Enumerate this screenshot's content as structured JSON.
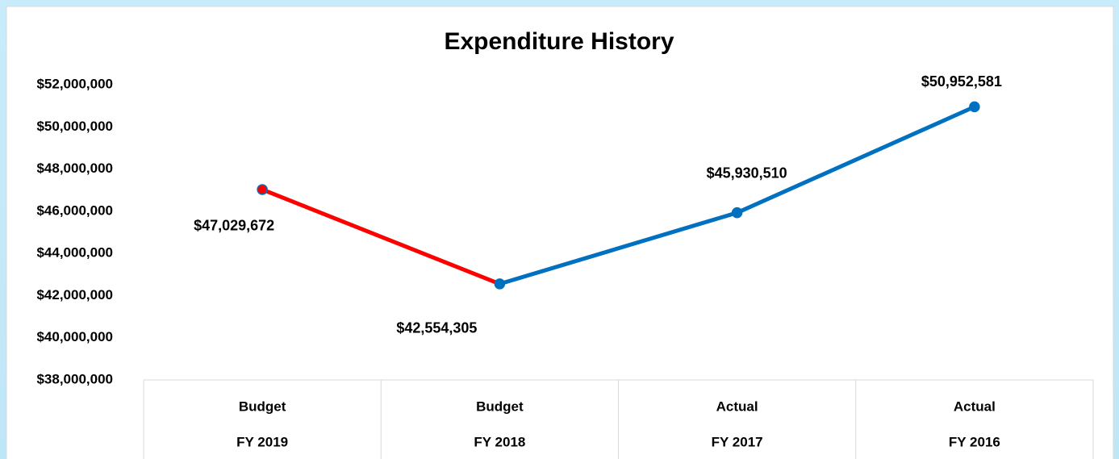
{
  "chart_data": {
    "type": "line",
    "title": "Expenditure History",
    "categories": [
      [
        "Budget",
        "FY 2019"
      ],
      [
        "Budget",
        "FY 2018"
      ],
      [
        "Actual",
        "FY 2017"
      ],
      [
        "Actual",
        "FY 2016"
      ]
    ],
    "series": [
      {
        "name": "Expenditure",
        "color": "#0070c0",
        "segment_colors": [
          "#ff0000",
          "#0070c0",
          "#0070c0"
        ],
        "marker_colors": [
          "#ff0000",
          "#0070c0",
          "#0070c0",
          "#0070c0"
        ],
        "values": [
          47029672,
          42554305,
          45930510,
          50952581
        ],
        "value_labels": [
          "$47,029,672",
          "$42,554,305",
          "$45,930,510",
          "$50,952,581"
        ]
      }
    ],
    "ylim": [
      38000000,
      52000000
    ],
    "yticks": [
      {
        "value": 38000000,
        "label": "$38,000,000"
      },
      {
        "value": 40000000,
        "label": "$40,000,000"
      },
      {
        "value": 42000000,
        "label": "$42,000,000"
      },
      {
        "value": 44000000,
        "label": "$44,000,000"
      },
      {
        "value": 46000000,
        "label": "$46,000,000"
      },
      {
        "value": 48000000,
        "label": "$48,000,000"
      },
      {
        "value": 50000000,
        "label": "$50,000,000"
      },
      {
        "value": 52000000,
        "label": "$52,000,000"
      }
    ],
    "grid": false
  }
}
